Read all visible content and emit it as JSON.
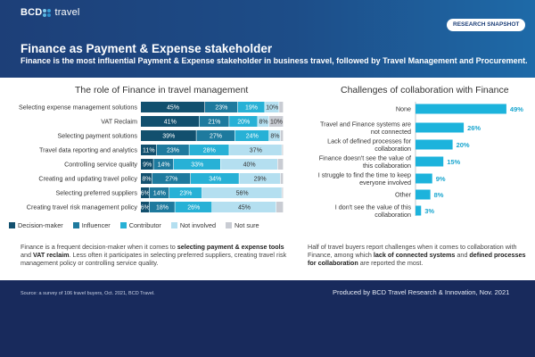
{
  "header": {
    "logo_bcd": "BCD",
    "logo_travel": "travel",
    "badge": "RESEARCH SNAPSHOT",
    "title": "Finance as Payment & Expense stakeholder",
    "subtitle": "Finance is the most influential Payment & Expense stakeholder in business travel, followed by Travel Management and Procurement."
  },
  "left_section": {
    "title": "The role of Finance in travel management",
    "note_parts": [
      "Finance is a frequent decision-maker when it comes to ",
      "selecting payment & expense tools",
      " and ",
      "VAT reclaim",
      ". Less often it participates in selecting preferred suppliers, creating travel risk management policy or controlling service quality."
    ]
  },
  "right_section": {
    "title": "Challenges of collaboration with Finance",
    "note_parts": [
      "Half of travel buyers report challenges when it comes to collaboration with Finance, among which ",
      "lack of connected systems",
      " and ",
      "defined processes for collaboration",
      " are reported the most."
    ]
  },
  "footer": {
    "source": "Source: a survey of 106 travel buyers, Oct. 2021, BCD Travel.",
    "produced": "Produced by BCD Travel Research & Innovation, Nov. 2021"
  },
  "colors": {
    "decision_maker": "#12506e",
    "influencer": "#1e7a9e",
    "contributor": "#27b1d6",
    "not_involved": "#b4dff0",
    "not_sure": "#c9ccd3",
    "challenge_bar": "#1cb3dc",
    "header_bg": "#1d4d88",
    "footer_bg": "#182a5c"
  },
  "chart_data": [
    {
      "type": "bar",
      "orientation": "horizontal",
      "stacked": true,
      "title": "The role of Finance in travel management",
      "categories": [
        "Selecting expense management solutions",
        "VAT Reclaim",
        "Selecting payment solutions",
        "Travel data reporting and analytics",
        "Controlling service quality",
        "Creating and updating travel policy",
        "Selecting preferred suppliers",
        "Creating travel risk management policy"
      ],
      "series": [
        {
          "name": "Decision-maker",
          "values": [
            45,
            41,
            39,
            11,
            9,
            8,
            6,
            6
          ]
        },
        {
          "name": "Influencer",
          "values": [
            23,
            21,
            27,
            23,
            14,
            27,
            14,
            18
          ]
        },
        {
          "name": "Contributor",
          "values": [
            19,
            20,
            24,
            28,
            33,
            34,
            23,
            26
          ]
        },
        {
          "name": "Not involved",
          "values": [
            10,
            8,
            8,
            37,
            40,
            29,
            56,
            45
          ]
        },
        {
          "name": "Not sure",
          "values": [
            3,
            10,
            2,
            1,
            4,
            2,
            1,
            5
          ]
        }
      ],
      "value_labels": [
        [
          "45%",
          "23%",
          "19%",
          "10%",
          ""
        ],
        [
          "41%",
          "21%",
          "20%",
          "8%",
          "10%"
        ],
        [
          "39%",
          "27%",
          "24%",
          "8%",
          ""
        ],
        [
          "11%",
          "23%",
          "28%",
          "37%",
          ""
        ],
        [
          "9%",
          "14%",
          "33%",
          "40%",
          ""
        ],
        [
          "8%",
          "27%",
          "34%",
          "29%",
          ""
        ],
        [
          "6%",
          "14%",
          "23%",
          "56%",
          ""
        ],
        [
          "6%",
          "18%",
          "26%",
          "45%",
          ""
        ]
      ],
      "xlim": [
        0,
        100
      ],
      "legend": "bottom"
    },
    {
      "type": "bar",
      "orientation": "horizontal",
      "title": "Challenges of collaboration with Finance",
      "categories": [
        [
          "None"
        ],
        [
          "Travel and Finance systems are",
          "not connected"
        ],
        [
          "Lack of defined processes for",
          "collaboration"
        ],
        [
          "Finance doesn't see the value of",
          "this collaboration"
        ],
        [
          "I struggle to find the time to keep",
          "everyone involved"
        ],
        [
          "Other"
        ],
        [
          "I don't see the value of this",
          "collaboration"
        ]
      ],
      "values": [
        49,
        26,
        20,
        15,
        9,
        8,
        3
      ],
      "value_labels": [
        "49%",
        "26%",
        "20%",
        "15%",
        "9%",
        "8%",
        "3%"
      ],
      "xlim": [
        0,
        50
      ]
    }
  ]
}
